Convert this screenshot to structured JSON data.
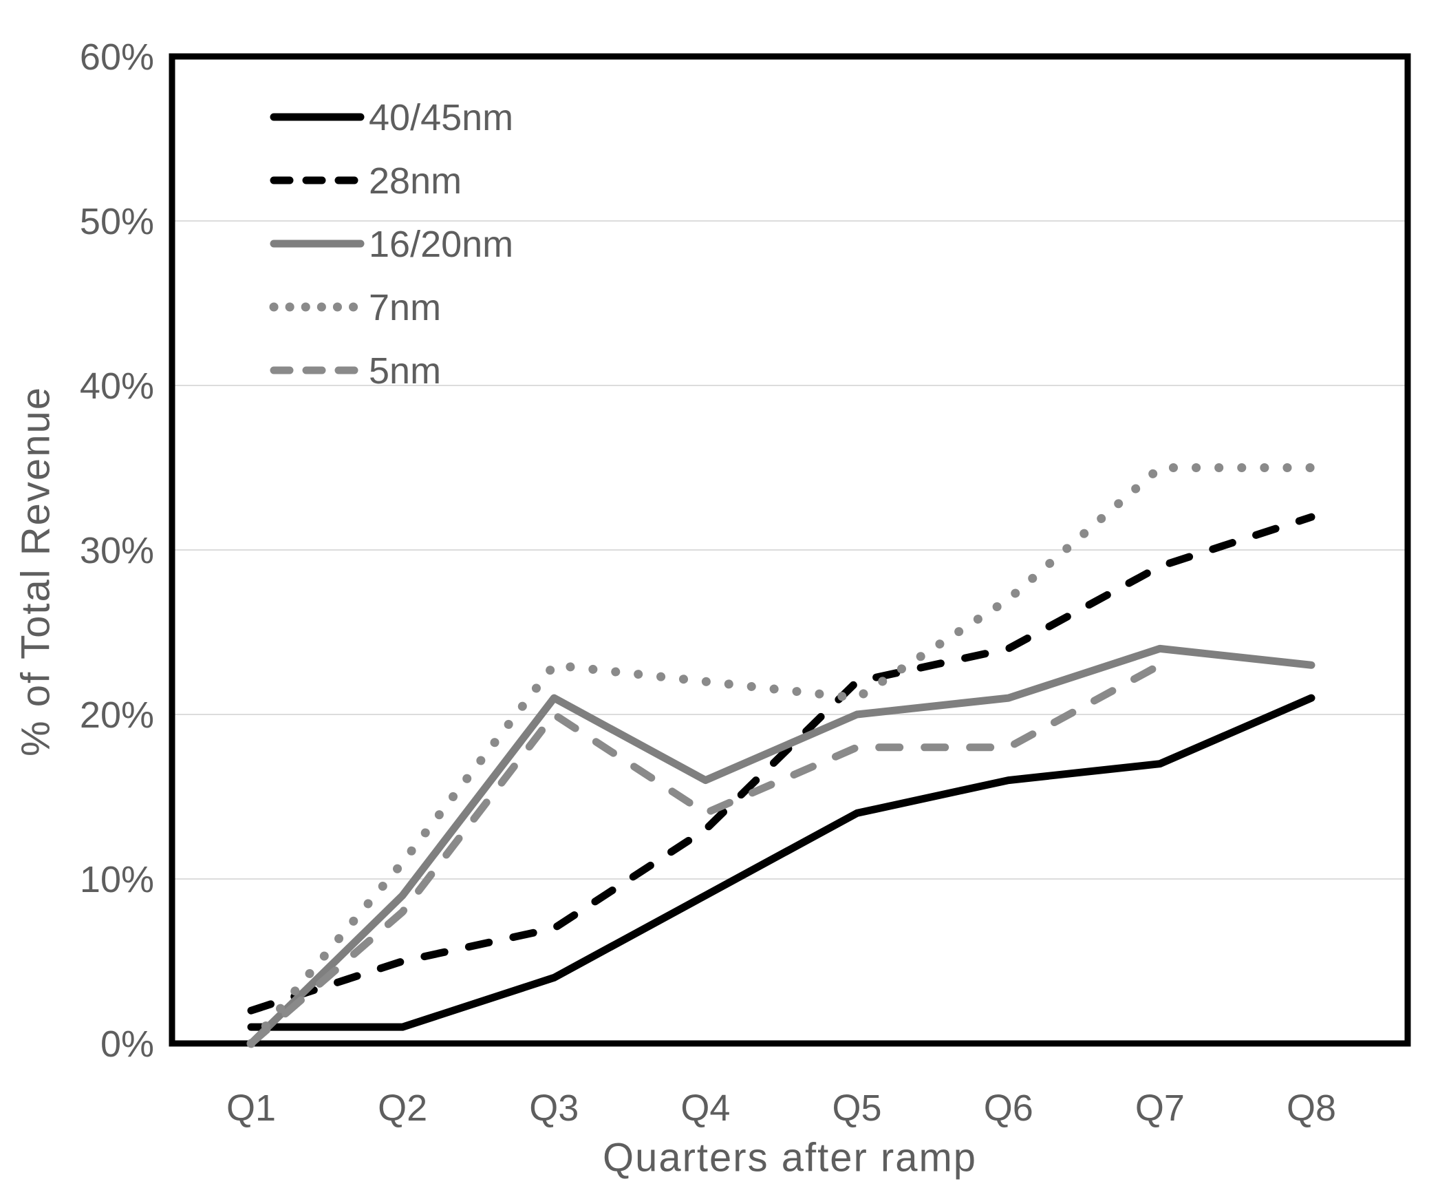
{
  "chart_data": {
    "type": "line",
    "title": "",
    "xlabel": "Quarters after ramp",
    "ylabel": "% of Total Revenue",
    "categories": [
      "Q1",
      "Q2",
      "Q3",
      "Q4",
      "Q5",
      "Q6",
      "Q7",
      "Q8"
    ],
    "ylim": [
      0,
      60
    ],
    "ytick_labels": [
      "0%",
      "10%",
      "20%",
      "30%",
      "40%",
      "50%",
      "60%"
    ],
    "grid": "horizontal",
    "legend_position": "top-left-inside",
    "series": [
      {
        "name": "40/45nm",
        "style": "solid",
        "color": "#000000",
        "values": [
          1,
          1,
          4,
          9,
          14,
          16,
          17,
          21
        ]
      },
      {
        "name": "28nm",
        "style": "dashed",
        "color": "#000000",
        "values": [
          2,
          5,
          7,
          13,
          22,
          24,
          29,
          32
        ]
      },
      {
        "name": "16/20nm",
        "style": "solid",
        "color": "#7f7f7f",
        "values": [
          0,
          9,
          21,
          16,
          20,
          21,
          24,
          23
        ]
      },
      {
        "name": "7nm",
        "style": "dotted",
        "color": "#8a8a8a",
        "values": [
          0,
          11,
          23,
          22,
          21,
          27,
          35,
          35
        ]
      },
      {
        "name": "5nm",
        "style": "dashed",
        "color": "#8a8a8a",
        "values": [
          0,
          8,
          20,
          14,
          18,
          18,
          23,
          null
        ]
      }
    ],
    "colors": {
      "grid": "#dcdcdc",
      "frame": "#000000",
      "text": "#5e5e5e"
    }
  }
}
